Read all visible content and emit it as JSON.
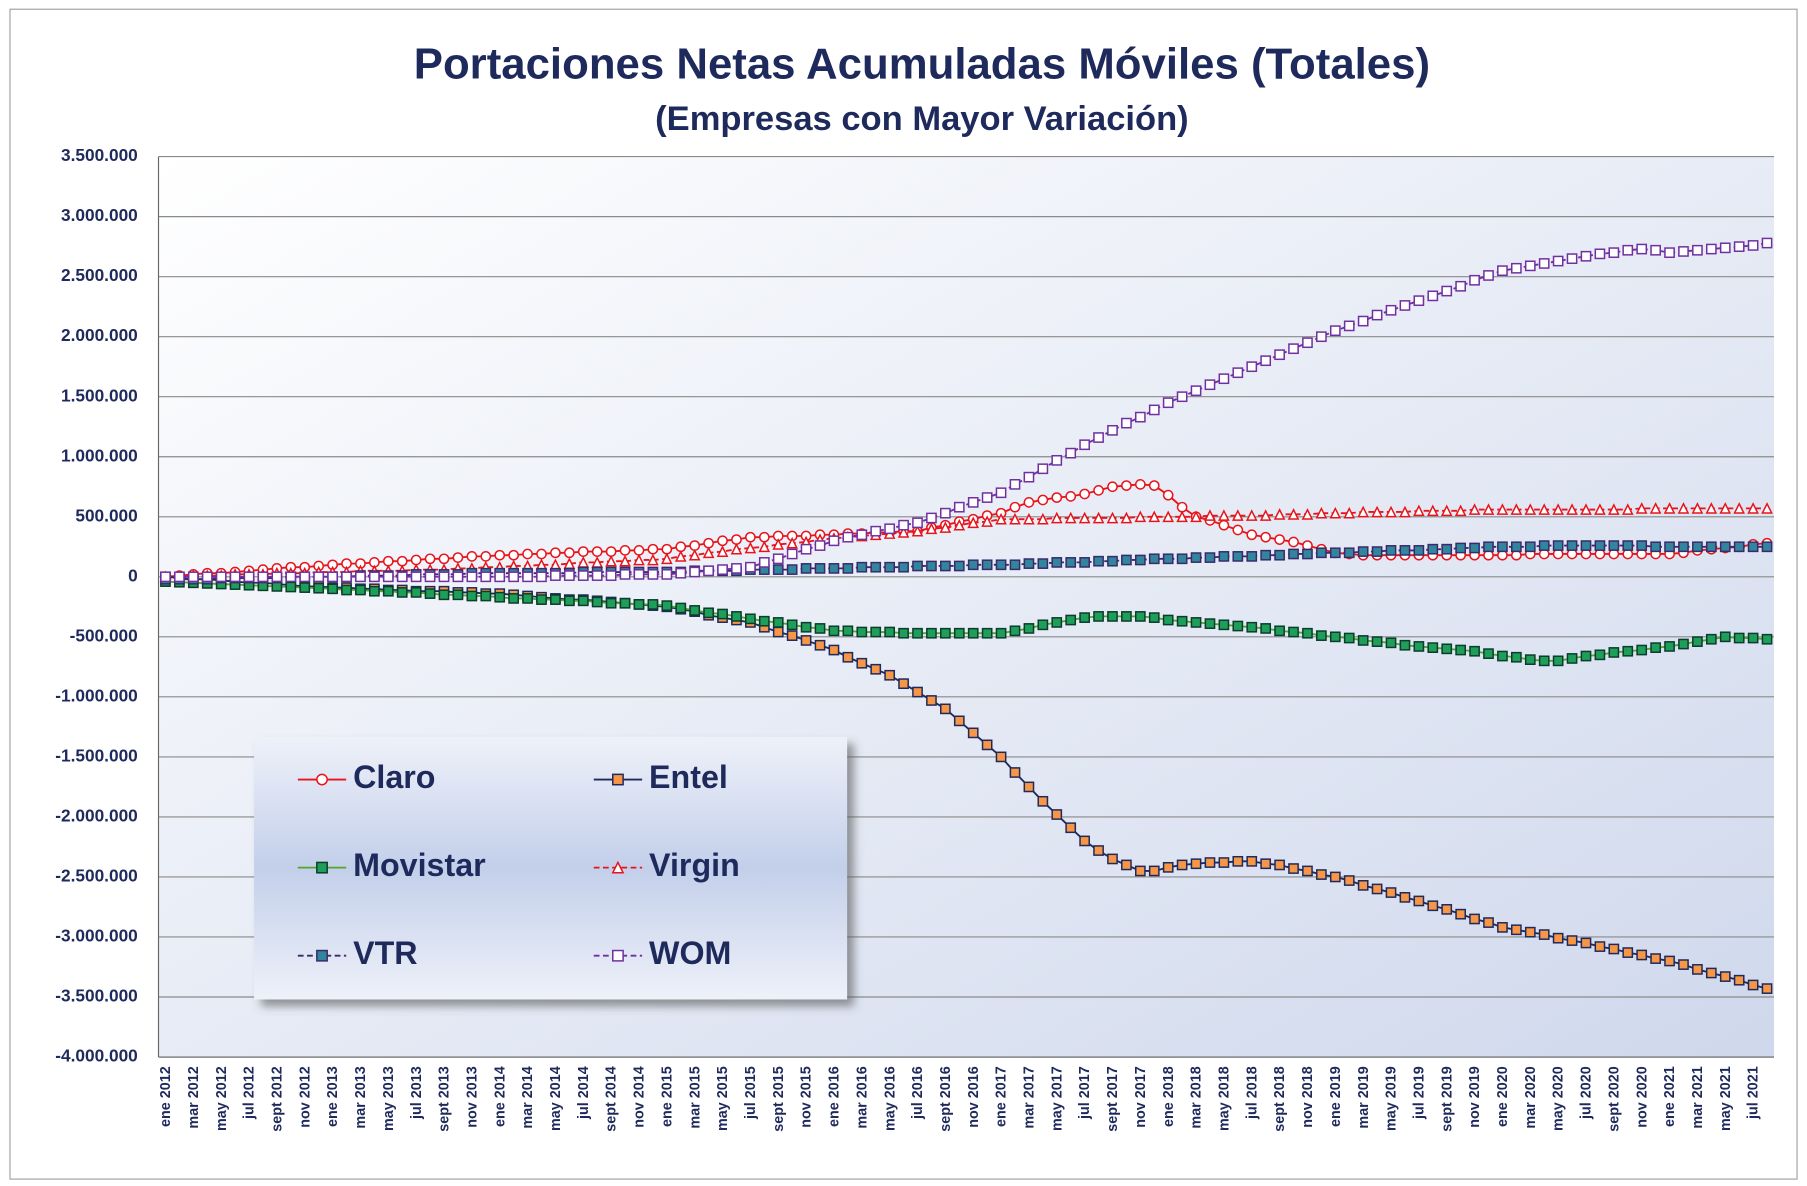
{
  "chart_data": {
    "type": "line",
    "title": "Portaciones Netas Acumuladas Móviles (Totales)",
    "subtitle": "(Empresas con Mayor Variación)",
    "categories": [
      "ene 2012",
      null,
      "mar 2012",
      null,
      "may 2012",
      null,
      "jul 2012",
      null,
      "sept 2012",
      null,
      "nov 2012",
      null,
      "ene 2013",
      null,
      "mar 2013",
      null,
      "may 2013",
      null,
      "jul 2013",
      null,
      "sept 2013",
      null,
      "nov 2013",
      null,
      "ene 2014",
      null,
      "mar 2014",
      null,
      "may 2014",
      null,
      "jul 2014",
      null,
      "sept 2014",
      null,
      "nov 2014",
      null,
      "ene 2015",
      null,
      "mar 2015",
      null,
      "may 2015",
      null,
      "jul 2015",
      null,
      "sept 2015",
      null,
      "nov 2015",
      null,
      "ene 2016",
      null,
      "mar 2016",
      null,
      "may 2016",
      null,
      "jul 2016",
      null,
      "sept 2016",
      null,
      "nov 2016",
      null,
      "ene 2017",
      null,
      "mar 2017",
      null,
      "may 2017",
      null,
      "jul 2017",
      null,
      "sept 2017",
      null,
      "nov 2017",
      null,
      "ene 2018",
      null,
      "mar 2018",
      null,
      "may 2018",
      null,
      "jul 2018",
      null,
      "sept 2018",
      null,
      "nov 2018",
      null,
      "ene 2019",
      null,
      "mar 2019",
      null,
      "may 2019",
      null,
      "jul 2019",
      null,
      "sept 2019",
      null,
      "nov 2019",
      null,
      "ene 2020",
      null,
      "mar 2020",
      null,
      "may 2020",
      null,
      "jul 2020",
      null,
      "sept 2020",
      null,
      "nov 2020",
      null,
      "ene 2021",
      null,
      "mar 2021",
      null,
      "may 2021",
      null,
      "jul 2021",
      null
    ],
    "series": [
      {
        "name": "Claro",
        "color": "#e8141b",
        "marker": "circle",
        "marker_fill": "#ffffff",
        "dashed": false,
        "values": [
          0,
          10000,
          20000,
          30000,
          30000,
          40000,
          50000,
          60000,
          70000,
          80000,
          80000,
          90000,
          100000,
          110000,
          110000,
          120000,
          130000,
          130000,
          140000,
          150000,
          150000,
          160000,
          170000,
          170000,
          180000,
          180000,
          190000,
          190000,
          200000,
          200000,
          210000,
          210000,
          210000,
          220000,
          220000,
          230000,
          230000,
          250000,
          260000,
          280000,
          300000,
          310000,
          330000,
          330000,
          340000,
          340000,
          340000,
          350000,
          350000,
          360000,
          360000,
          370000,
          370000,
          380000,
          380000,
          410000,
          430000,
          460000,
          480000,
          510000,
          530000,
          580000,
          620000,
          640000,
          660000,
          670000,
          690000,
          720000,
          750000,
          760000,
          770000,
          760000,
          680000,
          580000,
          500000,
          470000,
          430000,
          390000,
          350000,
          330000,
          310000,
          290000,
          260000,
          230000,
          200000,
          190000,
          180000,
          180000,
          180000,
          180000,
          180000,
          180000,
          180000,
          180000,
          180000,
          180000,
          180000,
          180000,
          190000,
          190000,
          190000,
          190000,
          190000,
          190000,
          190000,
          190000,
          190000,
          190000,
          190000,
          200000,
          220000,
          230000,
          240000,
          250000,
          270000,
          280000
        ]
      },
      {
        "name": "Entel",
        "color": "#1f2a5c",
        "marker": "square",
        "marker_fill": "#f79646",
        "dashed": false,
        "values": [
          0,
          -10000,
          -20000,
          -20000,
          -30000,
          -40000,
          -50000,
          -50000,
          -60000,
          -70000,
          -80000,
          -80000,
          -90000,
          -90000,
          -100000,
          -100000,
          -110000,
          -110000,
          -120000,
          -120000,
          -120000,
          -130000,
          -130000,
          -140000,
          -140000,
          -150000,
          -160000,
          -170000,
          -180000,
          -190000,
          -190000,
          -200000,
          -210000,
          -220000,
          -230000,
          -240000,
          -250000,
          -270000,
          -290000,
          -320000,
          -340000,
          -360000,
          -380000,
          -420000,
          -460000,
          -490000,
          -530000,
          -570000,
          -610000,
          -670000,
          -720000,
          -770000,
          -820000,
          -890000,
          -960000,
          -1030000,
          -1100000,
          -1200000,
          -1300000,
          -1400000,
          -1500000,
          -1630000,
          -1750000,
          -1870000,
          -1980000,
          -2090000,
          -2200000,
          -2280000,
          -2350000,
          -2400000,
          -2450000,
          -2450000,
          -2420000,
          -2400000,
          -2390000,
          -2380000,
          -2380000,
          -2370000,
          -2370000,
          -2390000,
          -2400000,
          -2430000,
          -2450000,
          -2480000,
          -2500000,
          -2530000,
          -2570000,
          -2600000,
          -2630000,
          -2670000,
          -2700000,
          -2740000,
          -2770000,
          -2810000,
          -2850000,
          -2880000,
          -2920000,
          -2940000,
          -2960000,
          -2980000,
          -3010000,
          -3030000,
          -3050000,
          -3080000,
          -3100000,
          -3130000,
          -3150000,
          -3180000,
          -3200000,
          -3230000,
          -3270000,
          -3300000,
          -3330000,
          -3360000,
          -3400000,
          -3430000
        ]
      },
      {
        "name": "Movistar",
        "color": "#4ea72e",
        "marker": "square",
        "marker_fill": "#1e9e5a",
        "marker_stroke": "#0b3d2a",
        "dashed": false,
        "values": [
          -40000,
          -45000,
          -50000,
          -55000,
          -60000,
          -65000,
          -70000,
          -75000,
          -80000,
          -85000,
          -90000,
          -95000,
          -100000,
          -110000,
          -110000,
          -120000,
          -120000,
          -130000,
          -130000,
          -140000,
          -150000,
          -150000,
          -160000,
          -160000,
          -170000,
          -180000,
          -180000,
          -190000,
          -190000,
          -200000,
          -200000,
          -210000,
          -220000,
          -220000,
          -230000,
          -230000,
          -240000,
          -260000,
          -280000,
          -300000,
          -310000,
          -330000,
          -350000,
          -370000,
          -380000,
          -400000,
          -420000,
          -430000,
          -450000,
          -450000,
          -460000,
          -460000,
          -460000,
          -470000,
          -470000,
          -470000,
          -470000,
          -470000,
          -470000,
          -470000,
          -470000,
          -450000,
          -430000,
          -400000,
          -380000,
          -360000,
          -340000,
          -330000,
          -330000,
          -330000,
          -330000,
          -340000,
          -360000,
          -370000,
          -380000,
          -390000,
          -400000,
          -410000,
          -420000,
          -430000,
          -450000,
          -460000,
          -470000,
          -490000,
          -500000,
          -510000,
          -530000,
          -540000,
          -550000,
          -570000,
          -580000,
          -590000,
          -600000,
          -610000,
          -620000,
          -640000,
          -660000,
          -670000,
          -690000,
          -700000,
          -700000,
          -680000,
          -660000,
          -650000,
          -630000,
          -620000,
          -610000,
          -590000,
          -580000,
          -560000,
          -540000,
          -520000,
          -500000,
          -510000,
          -510000,
          -520000
        ]
      },
      {
        "name": "Virgin",
        "color": "#e8141b",
        "marker": "triangle",
        "marker_fill": "#ffffff",
        "dashed": true,
        "values": [
          0,
          0,
          10000,
          10000,
          10000,
          20000,
          20000,
          20000,
          30000,
          30000,
          30000,
          40000,
          40000,
          40000,
          50000,
          50000,
          50000,
          50000,
          60000,
          60000,
          60000,
          70000,
          70000,
          80000,
          80000,
          90000,
          90000,
          100000,
          100000,
          110000,
          120000,
          120000,
          130000,
          130000,
          140000,
          140000,
          150000,
          170000,
          180000,
          200000,
          210000,
          230000,
          240000,
          250000,
          270000,
          280000,
          290000,
          310000,
          320000,
          330000,
          340000,
          350000,
          360000,
          370000,
          380000,
          400000,
          410000,
          430000,
          450000,
          460000,
          480000,
          480000,
          480000,
          480000,
          490000,
          490000,
          490000,
          490000,
          490000,
          490000,
          500000,
          500000,
          500000,
          500000,
          500000,
          510000,
          510000,
          510000,
          510000,
          510000,
          520000,
          520000,
          520000,
          530000,
          530000,
          530000,
          540000,
          540000,
          540000,
          540000,
          550000,
          550000,
          550000,
          550000,
          560000,
          560000,
          560000,
          560000,
          560000,
          560000,
          560000,
          560000,
          560000,
          560000,
          560000,
          560000,
          570000,
          570000,
          570000,
          570000,
          570000,
          570000,
          570000,
          570000,
          570000,
          570000
        ]
      },
      {
        "name": "VTR",
        "color": "#3b2a6b",
        "marker": "square",
        "marker_fill": "#31859c",
        "dashed": true,
        "values": [
          -20000,
          -20000,
          -20000,
          -20000,
          -10000,
          -10000,
          -10000,
          -10000,
          -10000,
          0,
          0,
          0,
          0,
          0,
          10000,
          10000,
          10000,
          10000,
          20000,
          20000,
          20000,
          20000,
          30000,
          30000,
          30000,
          30000,
          30000,
          30000,
          30000,
          30000,
          40000,
          40000,
          40000,
          40000,
          40000,
          40000,
          40000,
          40000,
          50000,
          50000,
          50000,
          50000,
          60000,
          60000,
          60000,
          60000,
          70000,
          70000,
          70000,
          70000,
          80000,
          80000,
          80000,
          80000,
          90000,
          90000,
          90000,
          90000,
          100000,
          100000,
          100000,
          100000,
          110000,
          110000,
          120000,
          120000,
          120000,
          130000,
          130000,
          140000,
          140000,
          150000,
          150000,
          150000,
          160000,
          160000,
          170000,
          170000,
          170000,
          180000,
          180000,
          190000,
          190000,
          200000,
          200000,
          200000,
          210000,
          210000,
          220000,
          220000,
          220000,
          230000,
          230000,
          240000,
          240000,
          250000,
          250000,
          250000,
          250000,
          260000,
          260000,
          260000,
          260000,
          260000,
          260000,
          260000,
          260000,
          250000,
          250000,
          250000,
          250000,
          250000,
          250000,
          250000,
          250000,
          250000
        ]
      },
      {
        "name": "WOM",
        "color": "#7030a0",
        "marker": "square",
        "marker_fill": "#ffffff",
        "dashed": true,
        "values": [
          0,
          0,
          0,
          0,
          0,
          0,
          0,
          0,
          0,
          0,
          0,
          0,
          0,
          0,
          0,
          0,
          0,
          0,
          0,
          0,
          0,
          0,
          0,
          0,
          0,
          0,
          0,
          0,
          10000,
          10000,
          10000,
          10000,
          10000,
          20000,
          20000,
          20000,
          20000,
          30000,
          40000,
          50000,
          60000,
          70000,
          80000,
          120000,
          150000,
          190000,
          230000,
          260000,
          300000,
          330000,
          350000,
          380000,
          400000,
          430000,
          450000,
          490000,
          530000,
          580000,
          620000,
          660000,
          700000,
          770000,
          830000,
          900000,
          970000,
          1030000,
          1100000,
          1160000,
          1220000,
          1280000,
          1330000,
          1390000,
          1450000,
          1500000,
          1550000,
          1600000,
          1650000,
          1700000,
          1750000,
          1800000,
          1850000,
          1900000,
          1950000,
          2000000,
          2050000,
          2090000,
          2130000,
          2180000,
          2220000,
          2260000,
          2300000,
          2340000,
          2380000,
          2420000,
          2470000,
          2510000,
          2550000,
          2570000,
          2590000,
          2610000,
          2630000,
          2650000,
          2670000,
          2690000,
          2700000,
          2720000,
          2730000,
          2720000,
          2700000,
          2710000,
          2720000,
          2730000,
          2740000,
          2750000,
          2760000,
          2780000
        ]
      }
    ],
    "ylim": [
      -4000000,
      3500000
    ],
    "yticks": [
      {
        "value": -4000000,
        "label": "-4.000.000"
      },
      {
        "value": -3500000,
        "label": "-3.500.000"
      },
      {
        "value": -3000000,
        "label": "-3.000.000"
      },
      {
        "value": -2500000,
        "label": "-2.500.000"
      },
      {
        "value": -2000000,
        "label": "-2.000.000"
      },
      {
        "value": -1500000,
        "label": "-1.500.000"
      },
      {
        "value": -1000000,
        "label": "-1.000.000"
      },
      {
        "value": -500000,
        "label": "-500.000"
      },
      0,
      {
        "value": 500000,
        "label": "500.000"
      },
      {
        "value": 1000000,
        "label": "1.000.000"
      },
      {
        "value": 1500000,
        "label": "1.500.000"
      },
      {
        "value": 2000000,
        "label": "2.000.000"
      },
      {
        "value": 2500000,
        "label": "2.500.000"
      },
      {
        "value": 3000000,
        "label": "3.000.000"
      },
      {
        "value": 3500000,
        "label": "3.500.000"
      }
    ],
    "grid": true,
    "legend_position": "lower left"
  }
}
